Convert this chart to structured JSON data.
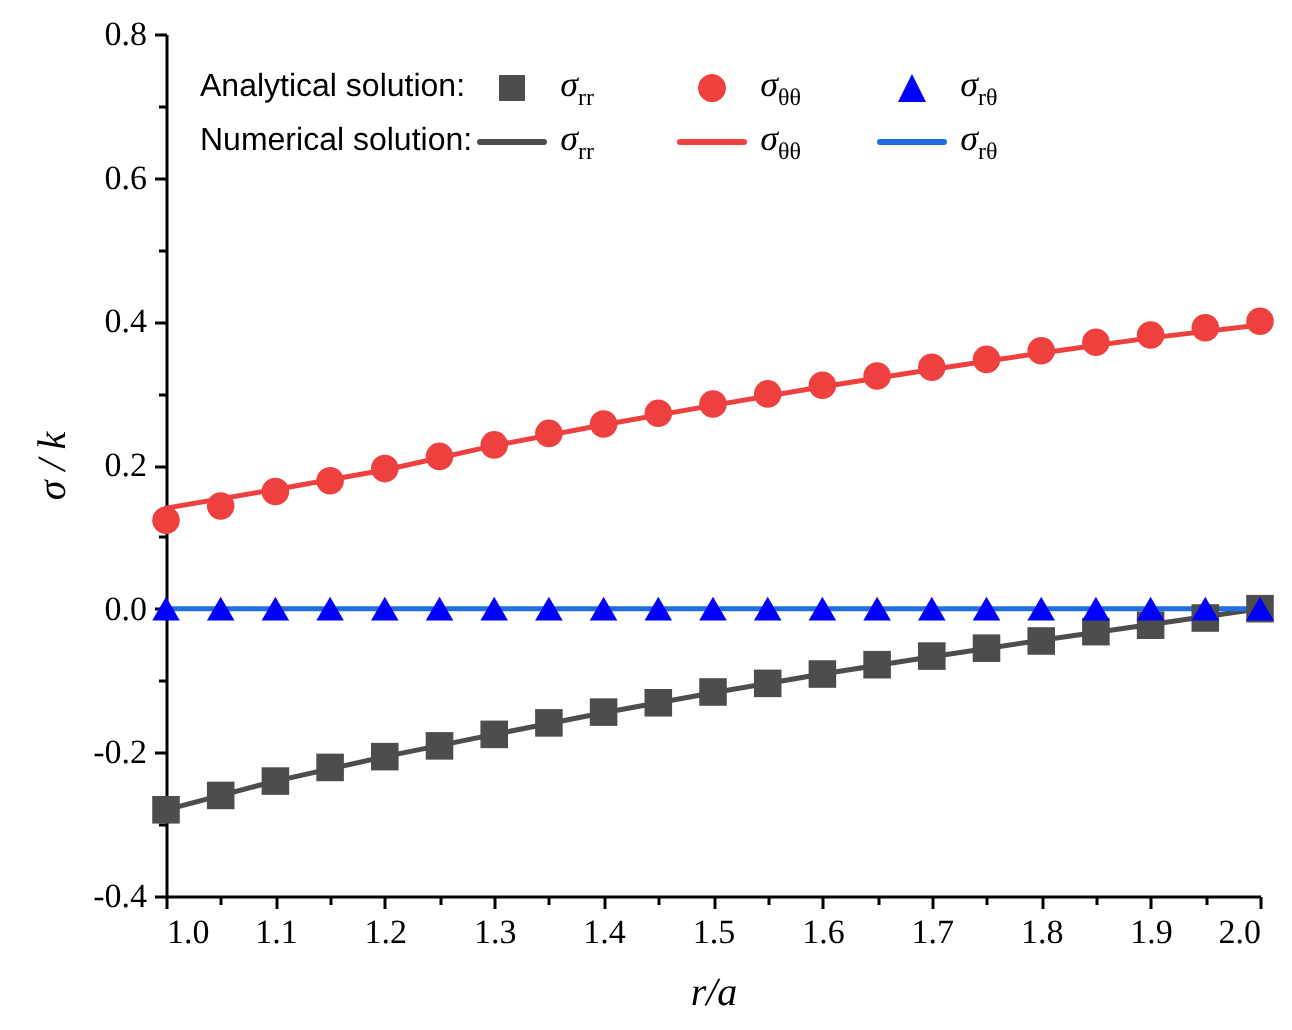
{
  "chart_data": {
    "type": "line",
    "xlabel": "r/a",
    "ylabel": "σ / k",
    "xlim": [
      1.0,
      2.0
    ],
    "xticks": [
      {
        "value": 1.0,
        "label": "1.0"
      },
      {
        "value": 1.05,
        "label": null
      },
      1.1,
      {
        "value": 1.15,
        "label": null
      },
      1.2,
      {
        "value": 1.25,
        "label": null
      },
      1.3,
      {
        "value": 1.35,
        "label": null
      },
      1.4,
      {
        "value": 1.45,
        "label": null
      },
      1.5,
      {
        "value": 1.55,
        "label": null
      },
      1.6,
      {
        "value": 1.65,
        "label": null
      },
      1.7,
      {
        "value": 1.75,
        "label": null
      },
      1.8,
      {
        "value": 1.85,
        "label": null
      },
      1.9,
      {
        "value": 1.95,
        "label": null
      },
      {
        "value": 2.0,
        "label": "2.0"
      }
    ],
    "ylim": [
      -0.4,
      0.8
    ],
    "yticks": [
      -0.4,
      {
        "value": -0.3,
        "label": null
      },
      -0.2,
      {
        "value": -0.1,
        "label": null
      },
      {
        "value": 0,
        "label": "0.0"
      },
      {
        "value": 0.1,
        "label": null
      },
      0.2,
      {
        "value": 0.3,
        "label": null
      },
      0.4,
      {
        "value": 0.5,
        "label": null
      },
      0.6,
      {
        "value": 0.7,
        "label": null
      },
      0.8
    ],
    "annotations": [
      "Analytical solution:",
      "Numerical solution:"
    ],
    "legend": "top left",
    "series": [
      {
        "name": "σ$_{rr}$",
        "type": "scatter",
        "marker": "square",
        "color": "#4d4d4d",
        "x": [
          1.0,
          1.05,
          1.1,
          1.15,
          1.2,
          1.25,
          1.3,
          1.35,
          1.4,
          1.45,
          1.5,
          1.55,
          1.6,
          1.65,
          1.7,
          1.75,
          1.8,
          1.85,
          1.9,
          1.95,
          2.0
        ],
        "values": [
          -0.28,
          -0.26,
          -0.24,
          -0.221,
          -0.206,
          -0.191,
          -0.175,
          -0.159,
          -0.144,
          -0.131,
          -0.116,
          -0.104,
          -0.091,
          -0.078,
          -0.066,
          -0.055,
          -0.045,
          -0.032,
          -0.023,
          -0.013,
          0.0
        ]
      },
      {
        "name": "σ$_{θθ}$",
        "type": "scatter",
        "marker": "circle",
        "color": "#ef4040",
        "x": [
          1.0,
          1.05,
          1.1,
          1.15,
          1.2,
          1.25,
          1.3,
          1.35,
          1.4,
          1.45,
          1.5,
          1.55,
          1.6,
          1.65,
          1.7,
          1.75,
          1.8,
          1.85,
          1.9,
          1.95,
          2.0
        ],
        "values": [
          0.123,
          0.143,
          0.163,
          0.178,
          0.195,
          0.212,
          0.228,
          0.244,
          0.257,
          0.272,
          0.285,
          0.299,
          0.311,
          0.324,
          0.336,
          0.347,
          0.359,
          0.371,
          0.381,
          0.391,
          0.4
        ]
      },
      {
        "name": "σ$_{rθ}$",
        "type": "scatter",
        "marker": "triangle",
        "color": "#0000ff",
        "x": [
          1.0,
          1.05,
          1.1,
          1.15,
          1.2,
          1.25,
          1.3,
          1.35,
          1.4,
          1.45,
          1.5,
          1.55,
          1.6,
          1.65,
          1.7,
          1.75,
          1.8,
          1.85,
          1.9,
          1.95,
          2.0
        ],
        "values": [
          0,
          0,
          0,
          0,
          0,
          0,
          0,
          0,
          0,
          0,
          0,
          0,
          0,
          0,
          0,
          0,
          0,
          0,
          0,
          0,
          0
        ]
      },
      {
        "name": "σ$_{rr}$",
        "type": "line",
        "marker": "none",
        "line_style": "solid",
        "color": "#4d4d4d",
        "x": [
          1.0,
          1.1,
          1.2,
          1.3,
          1.4,
          1.5,
          1.6,
          1.7,
          1.8,
          1.9,
          2.0
        ],
        "values": [
          -0.28,
          -0.24,
          -0.206,
          -0.175,
          -0.145,
          -0.117,
          -0.091,
          -0.067,
          -0.044,
          -0.022,
          0.0
        ]
      },
      {
        "name": "σ$_{θθ}$",
        "type": "line",
        "marker": "none",
        "line_style": "solid",
        "color": "#ef4040",
        "x": [
          1.0,
          1.1,
          1.2,
          1.3,
          1.4,
          1.5,
          1.6,
          1.7,
          1.8,
          1.9,
          2.0
        ],
        "values": [
          0.14,
          0.166,
          0.193,
          0.227,
          0.256,
          0.283,
          0.309,
          0.333,
          0.356,
          0.377,
          0.395
        ]
      },
      {
        "name": "σ$_{rθ}$",
        "type": "line",
        "marker": "none",
        "line_style": "solid",
        "color": "#1f6fe0",
        "x": [
          1.0,
          2.0
        ],
        "values": [
          0,
          0
        ]
      }
    ]
  }
}
